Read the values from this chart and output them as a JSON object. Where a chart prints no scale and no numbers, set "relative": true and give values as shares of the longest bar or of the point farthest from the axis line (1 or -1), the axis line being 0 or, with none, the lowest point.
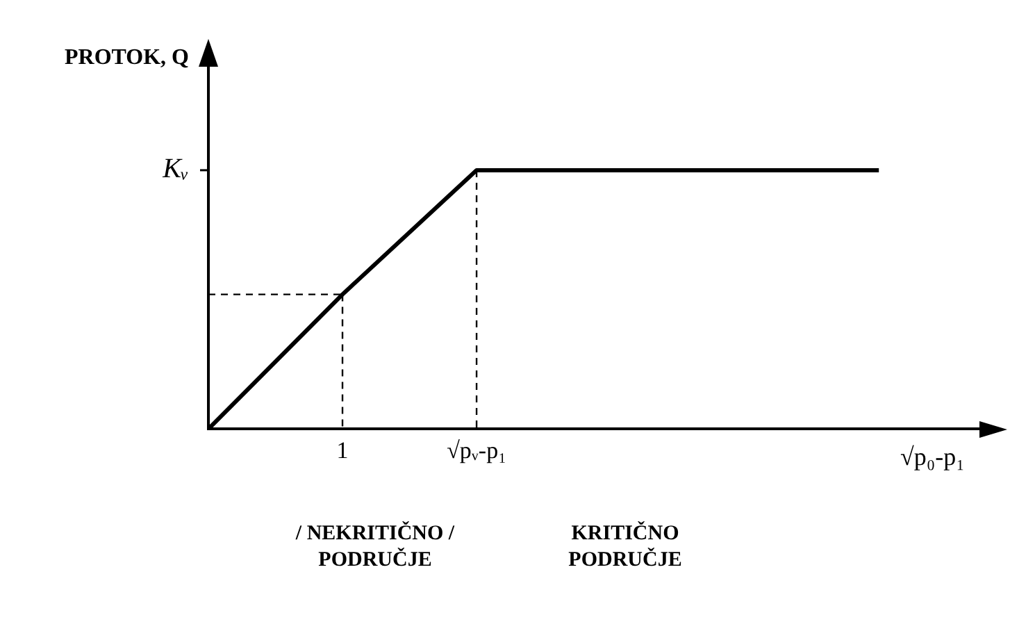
{
  "chart_data": {
    "type": "line",
    "relative": true,
    "ylabel": "PROTOK, Q",
    "xlabel": "√p₀-p₁",
    "categories": [
      null,
      "1",
      "√pᵥ-p₁",
      null,
      null,
      null
    ],
    "series": [
      {
        "values": [
          0,
          0.52,
          1,
          1,
          1,
          1
        ],
        "color": "#000000"
      },
      {
        "values": [
          0.52,
          0.52,
          null,
          null,
          null,
          null
        ],
        "color": "#000000",
        "line_style": "dashed"
      },
      {
        "x": [
          "1",
          "1"
        ],
        "values": [
          0.52,
          0
        ],
        "color": "#000000",
        "line_style": "dashed"
      },
      {
        "x": [
          "√pᵥ-p₁",
          "√pᵥ-p₁"
        ],
        "values": [
          1,
          0
        ],
        "color": "#000000",
        "line_style": "dashed"
      }
    ],
    "annotations": [
      "Kᵥ",
      "/ NEKRITIČNO / PODRUČJE",
      "KRITIČNO PODRUČJE"
    ],
    "grid": false,
    "legend": false,
    "marker": "none"
  }
}
